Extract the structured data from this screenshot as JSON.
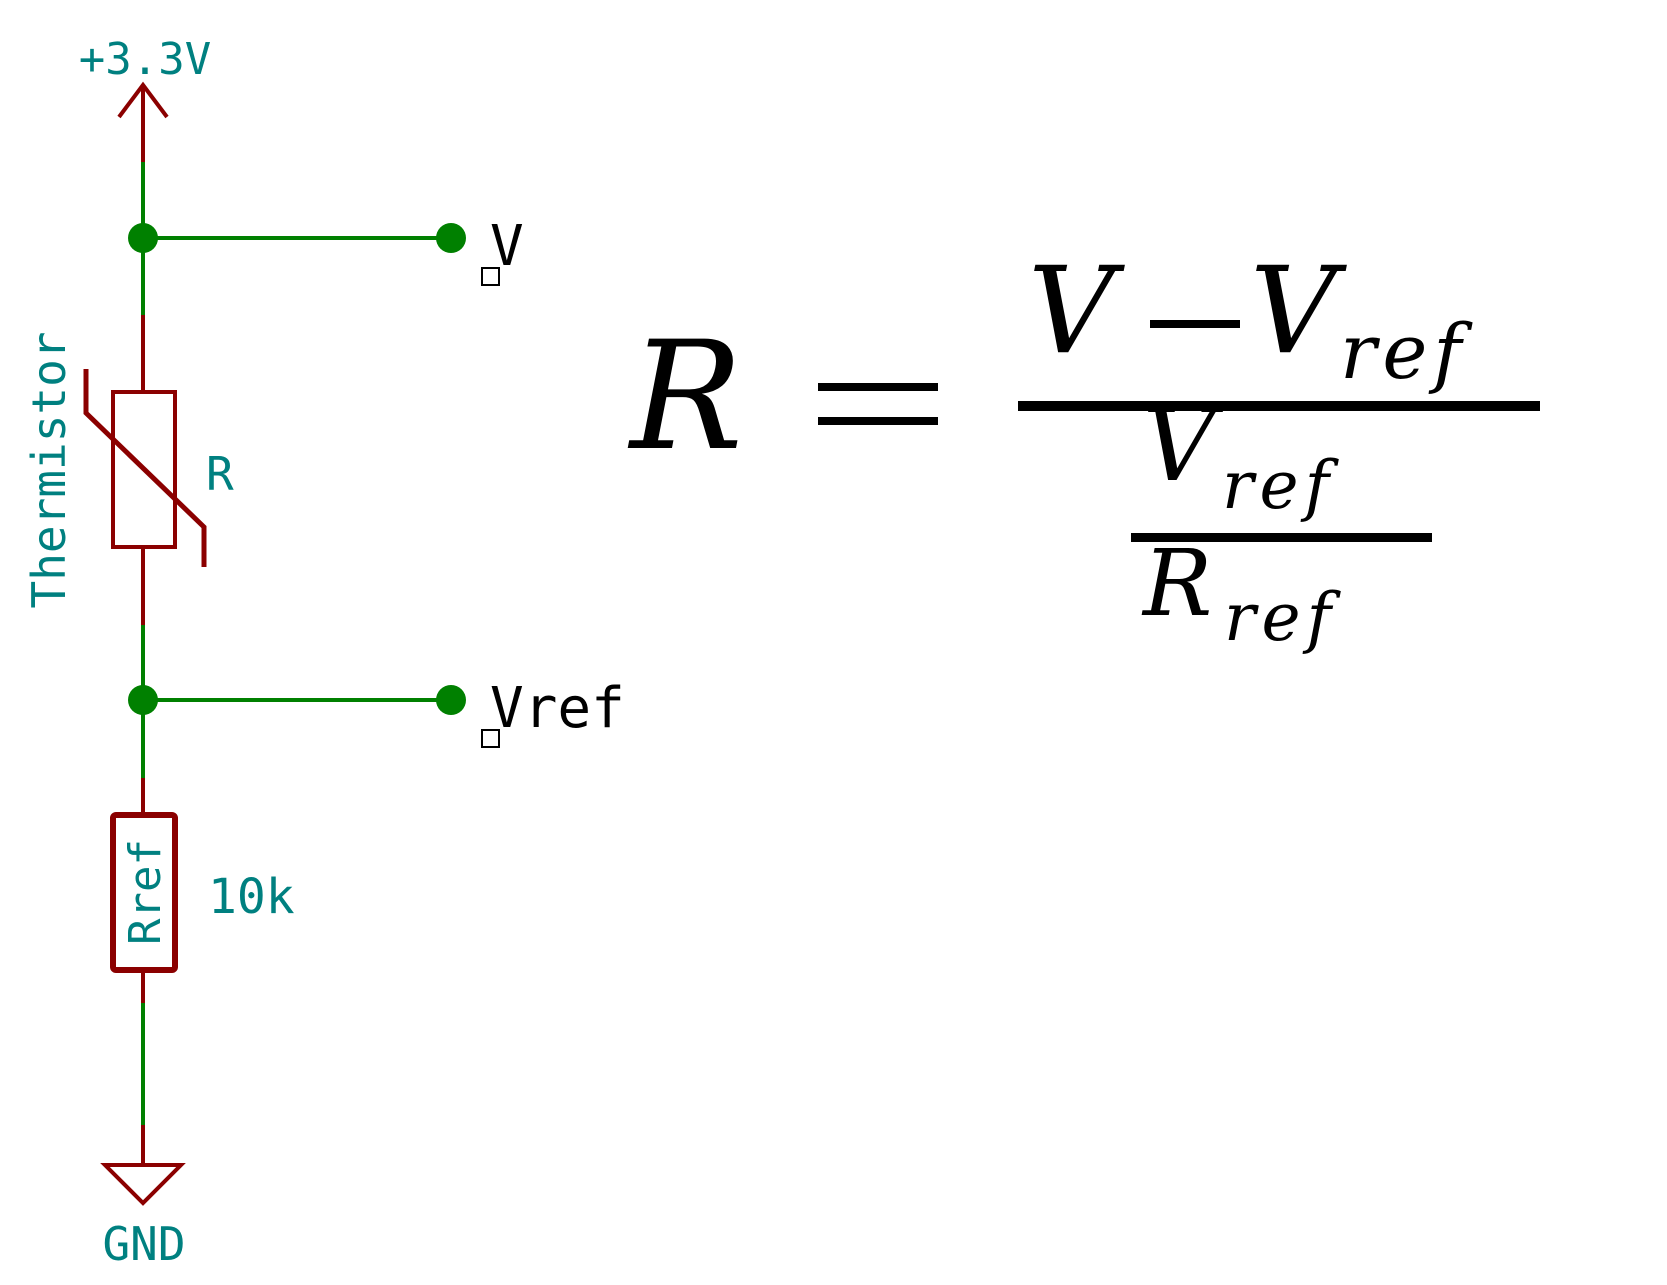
{
  "schematic": {
    "power_label": "+3.3V",
    "ground_label": "GND",
    "thermistor": {
      "name": "Thermistor",
      "value": "R"
    },
    "reference_resistor": {
      "name": "Rref",
      "value": "10k"
    },
    "pins": {
      "top": "V",
      "middle": "Vref"
    }
  },
  "equation": {
    "lhs": "R",
    "equals": "=",
    "numerator_a": "V",
    "minus": "−",
    "numerator_b": "V",
    "numerator_b_sub": "ref",
    "inner_numerator": "V",
    "inner_numerator_sub": "ref",
    "inner_denominator": "R",
    "inner_denominator_sub": "ref"
  },
  "colors": {
    "wire": "#008000",
    "component": "#8b0000",
    "label": "#008080",
    "pin_text": "#000000"
  }
}
